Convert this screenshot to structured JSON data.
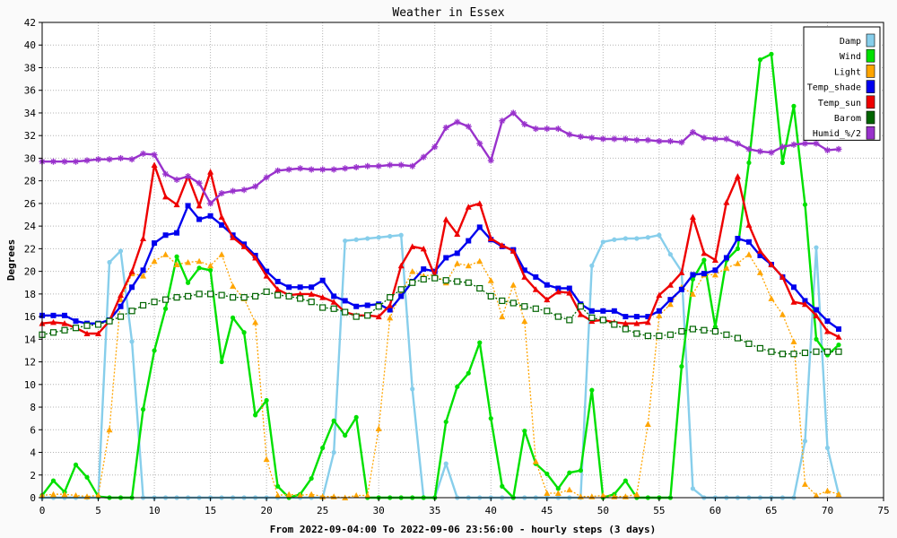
{
  "chart_data": {
    "type": "line",
    "title": "Weather in Essex",
    "xlabel": "From 2022-09-04:00 To 2022-09-06 23:56:00 - hourly steps (3 days)",
    "ylabel": "Degrees",
    "xlim": [
      0,
      75
    ],
    "ylim": [
      0,
      42
    ],
    "xticks": [
      0,
      5,
      10,
      15,
      20,
      25,
      30,
      35,
      40,
      45,
      50,
      55,
      60,
      65,
      70,
      75
    ],
    "yticks": [
      0,
      2,
      4,
      6,
      8,
      10,
      12,
      14,
      16,
      18,
      20,
      22,
      24,
      26,
      28,
      30,
      32,
      34,
      36,
      38,
      40,
      42
    ],
    "grid": true,
    "legend_position": "top-right",
    "x": [
      0,
      1,
      2,
      3,
      4,
      5,
      6,
      7,
      8,
      9,
      10,
      11,
      12,
      13,
      14,
      15,
      16,
      17,
      18,
      19,
      20,
      21,
      22,
      23,
      24,
      25,
      26,
      27,
      28,
      29,
      30,
      31,
      32,
      33,
      34,
      35,
      36,
      37,
      38,
      39,
      40,
      41,
      42,
      43,
      44,
      45,
      46,
      47,
      48,
      49,
      50,
      51,
      52,
      53,
      54,
      55,
      56,
      57,
      58,
      59,
      60,
      61,
      62,
      63,
      64,
      65,
      66,
      67,
      68,
      69,
      70,
      71
    ],
    "series": [
      {
        "name": "Damp",
        "color": "#87ceeb",
        "style": "solid",
        "marker": "circle",
        "values": [
          0,
          0,
          0,
          0,
          0,
          0,
          20.8,
          21.8,
          13.8,
          0,
          0,
          0,
          0,
          0,
          0,
          0,
          0,
          0,
          0,
          0,
          0,
          0,
          0,
          0,
          0,
          0,
          4,
          22.7,
          22.8,
          22.9,
          23,
          23.1,
          23.2,
          9.6,
          0,
          0,
          3,
          0,
          0,
          0,
          0,
          0,
          0,
          0,
          0,
          0,
          0,
          0,
          0,
          20.5,
          22.6,
          22.8,
          22.9,
          22.9,
          23,
          23.2,
          21.5,
          20,
          0.8,
          0,
          0,
          0,
          0,
          0,
          0,
          0,
          0,
          0,
          5,
          22.1,
          4.4,
          0.3
        ]
      },
      {
        "name": "Wind",
        "color": "#00e000",
        "style": "solid",
        "marker": "circle",
        "values": [
          0.2,
          1.5,
          0.5,
          2.9,
          1.8,
          0.1,
          0,
          0,
          0,
          7.8,
          13,
          16.7,
          21.3,
          19,
          20.3,
          20.1,
          12,
          15.9,
          14.6,
          7.3,
          8.6,
          1,
          0,
          0.3,
          1.7,
          4.4,
          6.8,
          5.5,
          7.1,
          0,
          0,
          0,
          0,
          0,
          0,
          0,
          6.7,
          9.8,
          11,
          13.7,
          7,
          1,
          0,
          5.9,
          3,
          2.1,
          0.8,
          2.2,
          2.4,
          9.5,
          0,
          0.3,
          1.5,
          0,
          0,
          0,
          0,
          11.6,
          19.3,
          21,
          15.1,
          21,
          22,
          29.6,
          38.7,
          39.2,
          29.6,
          34.6,
          25.9,
          14,
          12.6,
          13.5
        ]
      },
      {
        "name": "Light",
        "color": "#ffa500",
        "style": "dotted",
        "marker": "triangle",
        "values": [
          0.2,
          0.3,
          0.3,
          0.2,
          0.1,
          0.2,
          6,
          17.5,
          19.8,
          19.6,
          20.9,
          21.5,
          20.6,
          20.8,
          20.9,
          20.5,
          21.5,
          18.7,
          17.6,
          15.5,
          3.4,
          0.2,
          0.3,
          0.2,
          0.3,
          0.1,
          0.1,
          0,
          0.2,
          0.2,
          6.1,
          15.9,
          18.1,
          20,
          19.6,
          19.7,
          19,
          20.7,
          20.5,
          20.9,
          19.2,
          16,
          18.8,
          15.6,
          3.2,
          0.4,
          0.4,
          0.7,
          0.1,
          0.1,
          0.2,
          0.1,
          0.1,
          0.3,
          6.5,
          16.1,
          17.1,
          18.6,
          18,
          19.7,
          19.7,
          20.3,
          20.7,
          21.5,
          19.9,
          17.6,
          16.2,
          13.8,
          1.2,
          0.2,
          0.6,
          0.3
        ]
      },
      {
        "name": "Temp_shade",
        "color": "#0000ee",
        "style": "solid",
        "marker": "square",
        "values": [
          16.1,
          16.1,
          16.1,
          15.6,
          15.4,
          15.4,
          15.7,
          16.9,
          18.6,
          20.1,
          22.5,
          23.2,
          23.4,
          25.8,
          24.6,
          24.9,
          24.1,
          23.2,
          22.4,
          21.4,
          20,
          19.1,
          18.6,
          18.6,
          18.6,
          19.2,
          17.8,
          17.4,
          16.9,
          17,
          17.1,
          16.6,
          17.8,
          19.1,
          20.2,
          20,
          21.2,
          21.6,
          22.7,
          23.9,
          22.8,
          22.2,
          21.9,
          20.1,
          19.5,
          18.8,
          18.5,
          18.5,
          17.1,
          16.5,
          16.5,
          16.5,
          16,
          16,
          16,
          16.5,
          17.5,
          18.4,
          19.7,
          19.8,
          20.1,
          21.2,
          22.9,
          22.6,
          21.4,
          20.6,
          19.5,
          18.6,
          17.4,
          16.6,
          15.6,
          14.9
        ]
      },
      {
        "name": "Temp_sun",
        "color": "#ee0000",
        "style": "solid",
        "marker": "triangle",
        "values": [
          15.4,
          15.5,
          15.4,
          15,
          14.5,
          14.5,
          15.6,
          17.9,
          20,
          22.9,
          29.4,
          26.6,
          25.9,
          28.4,
          25.8,
          28.8,
          24.8,
          23,
          22.2,
          21.2,
          19.6,
          18.4,
          17.9,
          18,
          18,
          17.7,
          17.3,
          16.4,
          16.1,
          16.1,
          16,
          17,
          20.5,
          22.2,
          22,
          19.6,
          24.6,
          23.3,
          25.7,
          26,
          22.9,
          22.3,
          21.8,
          19.5,
          18.4,
          17.5,
          18.2,
          18.1,
          16.2,
          15.6,
          15.7,
          15.5,
          15.4,
          15.4,
          15.5,
          17.9,
          18.8,
          19.9,
          24.8,
          21.6,
          21,
          26.1,
          28.4,
          24.1,
          21.8,
          20.6,
          19.5,
          17.3,
          17.1,
          16.1,
          14.7,
          14.2
        ]
      },
      {
        "name": "Barom",
        "color": "#006400",
        "style": "dotted",
        "marker": "open-square",
        "values": [
          14.4,
          14.6,
          14.8,
          15,
          15.2,
          15.3,
          15.6,
          16,
          16.5,
          17,
          17.3,
          17.5,
          17.7,
          17.8,
          18,
          18,
          17.9,
          17.7,
          17.7,
          17.8,
          18.2,
          17.9,
          17.8,
          17.6,
          17.3,
          16.8,
          16.7,
          16.4,
          16,
          16.1,
          16.9,
          17.7,
          18.4,
          19,
          19.3,
          19.4,
          19.2,
          19.1,
          19,
          18.5,
          17.8,
          17.4,
          17.2,
          16.9,
          16.7,
          16.5,
          16,
          15.7,
          16.9,
          15.9,
          15.7,
          15.3,
          14.9,
          14.5,
          14.3,
          14.3,
          14.4,
          14.7,
          14.9,
          14.8,
          14.7,
          14.4,
          14.1,
          13.6,
          13.2,
          12.9,
          12.7,
          12.7,
          12.8,
          12.9,
          12.9,
          12.9
        ]
      },
      {
        "name": "Humid_%/2",
        "color": "#9932cc",
        "style": "solid",
        "marker": "star",
        "values": [
          29.7,
          29.7,
          29.7,
          29.7,
          29.8,
          29.9,
          29.9,
          30,
          29.9,
          30.4,
          30.3,
          28.6,
          28.1,
          28.4,
          27.8,
          26,
          26.9,
          27.1,
          27.2,
          27.5,
          28.3,
          28.9,
          29,
          29.1,
          29,
          29,
          29,
          29.1,
          29.2,
          29.3,
          29.3,
          29.4,
          29.4,
          29.3,
          30.1,
          31,
          32.7,
          33.2,
          32.8,
          31.3,
          29.8,
          33.3,
          34,
          33,
          32.6,
          32.6,
          32.6,
          32.1,
          31.9,
          31.8,
          31.7,
          31.7,
          31.7,
          31.6,
          31.6,
          31.5,
          31.5,
          31.4,
          32.3,
          31.8,
          31.7,
          31.7,
          31.3,
          30.8,
          30.6,
          30.5,
          31,
          31.2,
          31.3,
          31.3,
          30.7,
          30.8
        ]
      }
    ]
  }
}
